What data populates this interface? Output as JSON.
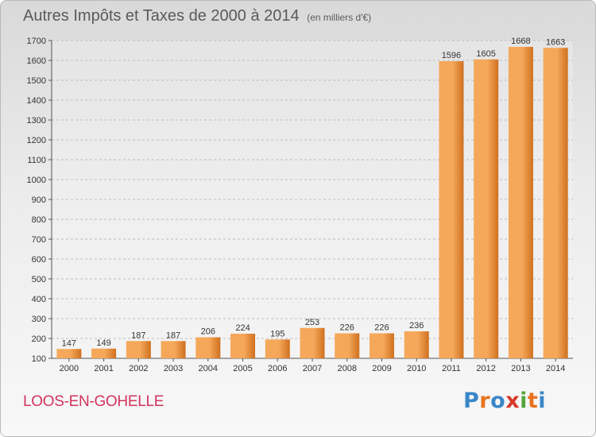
{
  "title": "Autres Impôts et Taxes de 2000 à 2014",
  "unit": "(en milliers d'€)",
  "city": "LOOS-EN-GOHELLE",
  "logo": {
    "text": "Proxiti",
    "colors": [
      "#3a87c8",
      "#e9731c",
      "#3a87c8",
      "#d63a2a",
      "#55a63a",
      "#e9731c",
      "#3a87c8"
    ]
  },
  "colors": {
    "bar_light": "#f5a85a",
    "bar_dark": "#d0701f",
    "grid": "#bdbdbd",
    "title": "#5a5a5a",
    "city": "#d2345c"
  },
  "chart_data": {
    "type": "bar",
    "title": "Autres Impôts et Taxes de 2000 à 2014",
    "subtitle": "(en milliers d'€)",
    "categories": [
      "2000",
      "2001",
      "2002",
      "2003",
      "2004",
      "2005",
      "2006",
      "2007",
      "2008",
      "2009",
      "2010",
      "2011",
      "2012",
      "2013",
      "2014"
    ],
    "values": [
      147,
      149,
      187,
      187,
      206,
      224,
      195,
      253,
      226,
      226,
      236,
      1596,
      1605,
      1668,
      1663
    ],
    "ylim": [
      100,
      1700
    ],
    "yticks": [
      100,
      200,
      300,
      400,
      500,
      600,
      700,
      800,
      900,
      1000,
      1100,
      1200,
      1300,
      1400,
      1500,
      1600,
      1700
    ],
    "grid": true,
    "xlabel": "",
    "ylabel": ""
  }
}
